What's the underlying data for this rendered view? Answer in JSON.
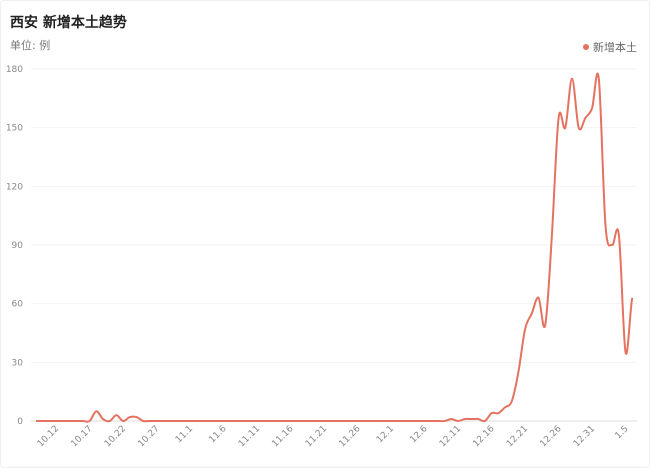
{
  "chart_data": {
    "type": "line",
    "title": "西安 新增本土趋势",
    "subtitle": "单位: 例",
    "legend": {
      "position": "top-right",
      "entries": [
        "新增本土"
      ]
    },
    "color": "#e5725f",
    "grid": true,
    "ylim": [
      0,
      180
    ],
    "yticks": [
      0,
      30,
      60,
      90,
      120,
      150,
      180
    ],
    "xtick_labels": [
      "10.12",
      "10.17",
      "10.22",
      "10.27",
      "11.1",
      "11.6",
      "11.11",
      "11.16",
      "11.21",
      "11.26",
      "12.1",
      "12.6",
      "12.11",
      "12.16",
      "12.21",
      "12.26",
      "12.31",
      "1.5"
    ],
    "categories": [
      "10.9",
      "10.10",
      "10.11",
      "10.12",
      "10.13",
      "10.14",
      "10.15",
      "10.16",
      "10.17",
      "10.18",
      "10.19",
      "10.20",
      "10.21",
      "10.22",
      "10.23",
      "10.24",
      "10.25",
      "10.26",
      "10.27",
      "10.28",
      "10.29",
      "10.30",
      "10.31",
      "11.1",
      "11.2",
      "11.3",
      "11.4",
      "11.5",
      "11.6",
      "11.7",
      "11.8",
      "11.9",
      "11.10",
      "11.11",
      "11.12",
      "11.13",
      "11.14",
      "11.15",
      "11.16",
      "11.17",
      "11.18",
      "11.19",
      "11.20",
      "11.21",
      "11.22",
      "11.23",
      "11.24",
      "11.25",
      "11.26",
      "11.27",
      "11.28",
      "11.29",
      "11.30",
      "12.1",
      "12.2",
      "12.3",
      "12.4",
      "12.5",
      "12.6",
      "12.7",
      "12.8",
      "12.9",
      "12.10",
      "12.11",
      "12.12",
      "12.13",
      "12.14",
      "12.15",
      "12.16",
      "12.17",
      "12.18",
      "12.19",
      "12.20",
      "12.21",
      "12.22",
      "12.23",
      "12.24",
      "12.25",
      "12.26",
      "12.27",
      "12.28",
      "12.29",
      "12.30",
      "12.31",
      "1.1",
      "1.2",
      "1.3",
      "1.4",
      "1.5",
      "1.6"
    ],
    "series": [
      {
        "name": "新增本土",
        "values": [
          0,
          0,
          0,
          0,
          0,
          0,
          0,
          0,
          0,
          5,
          1,
          0,
          3,
          0,
          2,
          2,
          0,
          0,
          0,
          0,
          0,
          0,
          0,
          0,
          0,
          0,
          0,
          0,
          0,
          0,
          0,
          0,
          0,
          0,
          0,
          0,
          0,
          0,
          0,
          0,
          0,
          0,
          0,
          0,
          0,
          0,
          0,
          0,
          0,
          0,
          0,
          0,
          0,
          0,
          0,
          0,
          0,
          0,
          0,
          0,
          0,
          0,
          1,
          0,
          1,
          1,
          1,
          0,
          4,
          4,
          7,
          10,
          25,
          47,
          55,
          63,
          49,
          95,
          155,
          150,
          175,
          150,
          155,
          160,
          175,
          100,
          90,
          95,
          35,
          63
        ]
      }
    ]
  }
}
